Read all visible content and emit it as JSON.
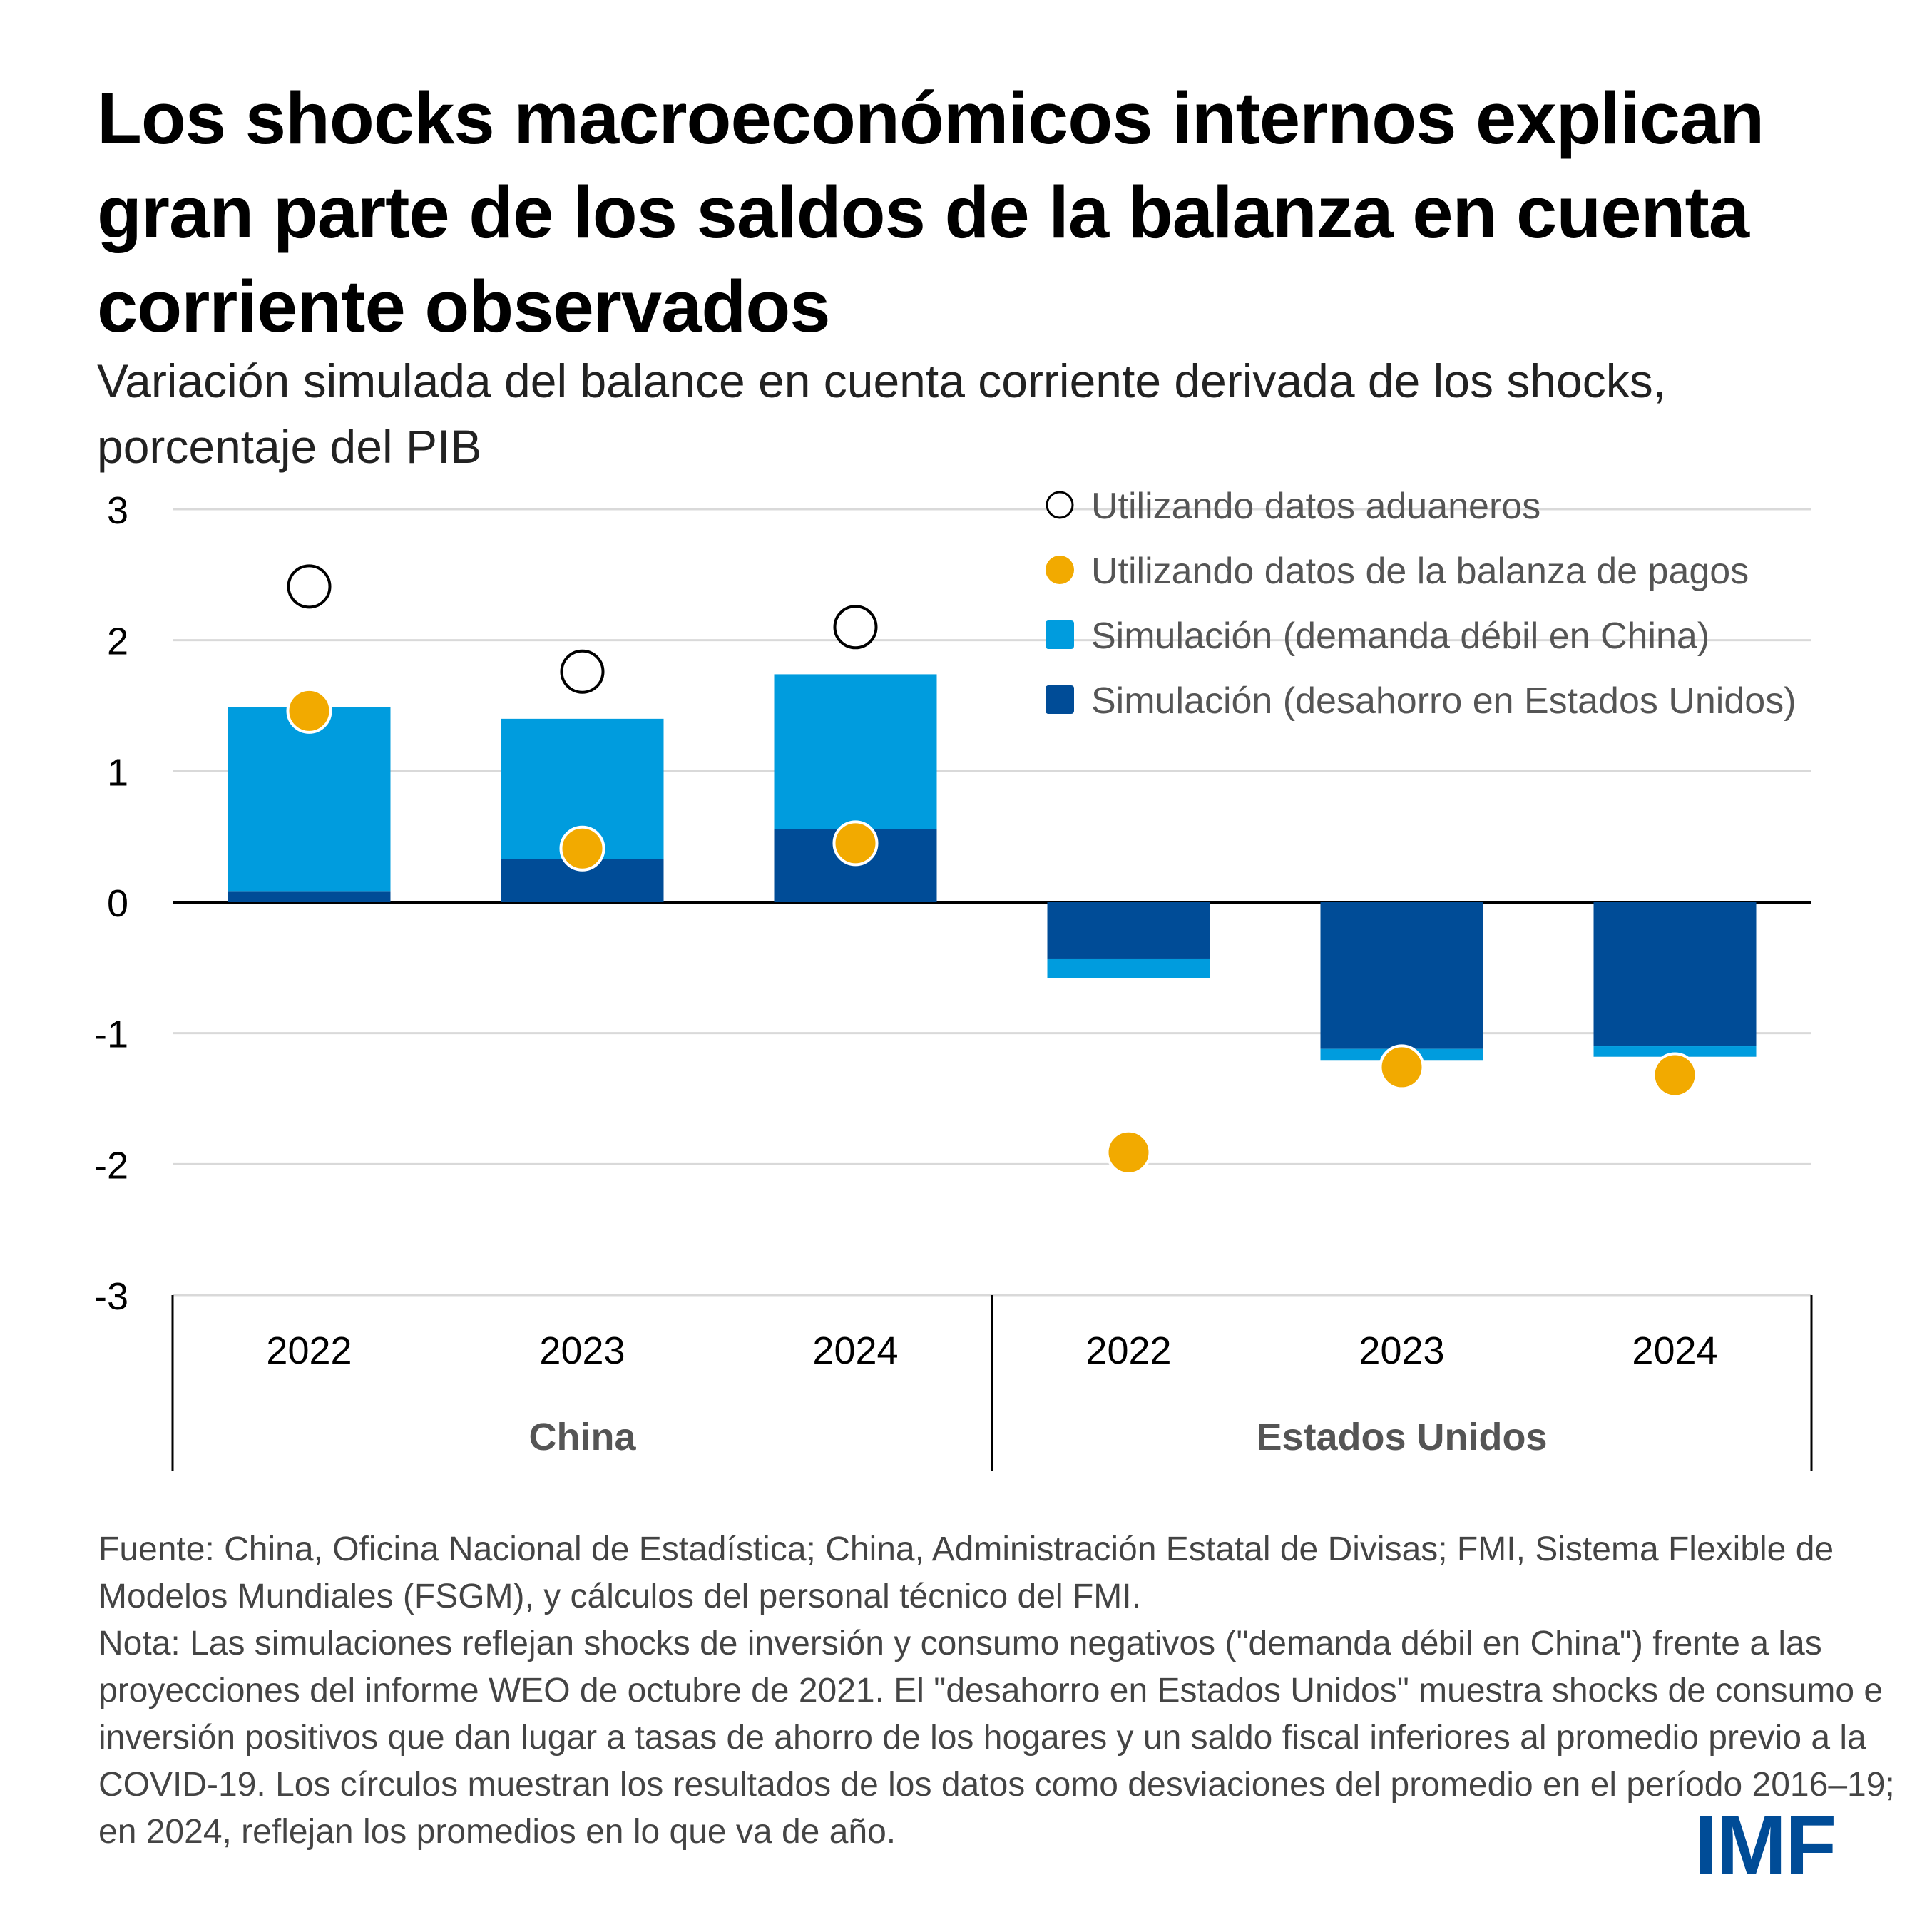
{
  "header": {
    "title": "Los shocks macroeconómicos internos explican gran parte de los saldos de la balanza en cuenta corriente observados",
    "subtitle": "Variación simulada del balance en cuenta corriente derivada de los shocks, porcentaje del PIB"
  },
  "chart_data": {
    "type": "bar",
    "stacked": true,
    "title": "Los shocks macroeconómicos internos explican gran parte de los saldos de la balanza en cuenta corriente observados",
    "subtitle": "Variación simulada del balance en cuenta corriente derivada de los shocks, porcentaje del PIB",
    "xlabel": "",
    "ylabel": "",
    "ylim": [
      -3,
      3
    ],
    "yticks": [
      3,
      2,
      1,
      0,
      -1,
      -2,
      -3
    ],
    "grid": true,
    "legend_position": "top-right",
    "groups": [
      {
        "label": "China",
        "categories": [
          "2022",
          "2023",
          "2024"
        ]
      },
      {
        "label": "Estados Unidos",
        "categories": [
          "2022",
          "2023",
          "2024"
        ]
      }
    ],
    "categories": [
      "China 2022",
      "China 2023",
      "China 2024",
      "Estados Unidos 2022",
      "Estados Unidos 2023",
      "Estados Unidos 2024"
    ],
    "series": [
      {
        "name": "Simulación (desahorro en Estados Unidos)",
        "kind": "bar",
        "color": "#004c97",
        "values": [
          0.08,
          0.33,
          0.56,
          -0.43,
          -1.12,
          -1.1
        ]
      },
      {
        "name": "Simulación (demanda débil en China)",
        "kind": "bar",
        "color": "#009cde",
        "values": [
          1.41,
          1.07,
          1.18,
          -0.15,
          -0.09,
          -0.08
        ]
      },
      {
        "name": "Utilizando datos aduaneros",
        "kind": "marker-hollow",
        "color": "#000000",
        "values": [
          2.41,
          1.76,
          2.1,
          null,
          null,
          null
        ]
      },
      {
        "name": "Utilizando datos de la balanza de pagos",
        "kind": "marker-filled",
        "color": "#f2aa00",
        "values": [
          1.46,
          0.41,
          0.45,
          -1.91,
          -1.26,
          -1.32
        ]
      }
    ],
    "legend": [
      {
        "label": "Utilizando datos aduaneros",
        "symbol": "hollow-circle",
        "color": "#000000"
      },
      {
        "label": "Utilizando datos de la balanza de pagos",
        "symbol": "filled-circle",
        "color": "#f2aa00"
      },
      {
        "label": "Simulación (demanda débil en China)",
        "symbol": "square",
        "color": "#009cde"
      },
      {
        "label": "Simulación (desahorro en Estados Unidos)",
        "symbol": "square",
        "color": "#004c97"
      }
    ]
  },
  "footnote": {
    "source": "Fuente: China, Oficina Nacional de Estadística; China, Administración Estatal de Divisas; FMI, Sistema Flexible de Modelos Mundiales (FSGM), y cálculos del personal técnico del FMI.",
    "note": "Nota: Las simulaciones reflejan shocks de inversión y consumo negativos (\"demanda débil en China\") frente a las proyecciones del informe WEO de octubre de 2021. El \"desahorro en Estados Unidos\" muestra shocks de consumo e inversión positivos que dan lugar a tasas de ahorro de los hogares y un saldo fiscal inferiores al promedio previo a la COVID-19. Los círculos muestran los resultados de los datos como desviaciones del promedio en el período 2016–19; en 2024, reflejan los promedios en lo que va de año."
  },
  "logo": {
    "text": "IMF",
    "color": "#004c97"
  }
}
